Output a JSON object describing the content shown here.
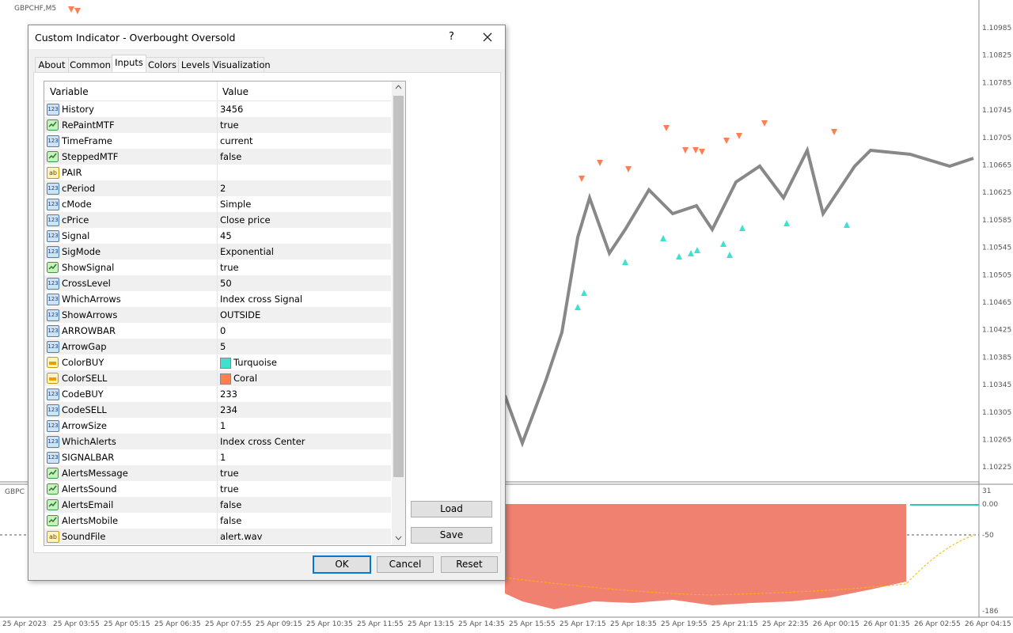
{
  "chart_window": {
    "symbol": "GBPCHF,M5",
    "indicator_label": "GBPC",
    "price_labels": [
      "1.10985",
      "1.10825",
      "1.10785",
      "1.10745",
      "1.10705",
      "1.10665",
      "1.10625",
      "1.10585",
      "1.10545",
      "1.10505",
      "1.10465",
      "1.10425",
      "1.10385",
      "1.10345",
      "1.10305",
      "1.10265",
      "1.10225"
    ],
    "indicator_labels": [
      "31",
      "0.00",
      "-50",
      "-186"
    ],
    "time_labels": [
      "25 Apr 2023",
      "25 Apr 03:55",
      "25 Apr 05:15",
      "25 Apr 06:35",
      "25 Apr 07:55",
      "25 Apr 09:15",
      "25 Apr 10:35",
      "25 Apr 11:55",
      "25 Apr 13:15",
      "25 Apr 14:35",
      "25 Apr 15:55",
      "25 Apr 17:15",
      "25 Apr 18:35",
      "25 Apr 19:55",
      "25 Apr 21:15",
      "25 Apr 22:35",
      "26 Apr 00:15",
      "26 Apr 01:35",
      "26 Apr 02:55",
      "26 Apr 04:15"
    ]
  },
  "dialog": {
    "title": "Custom Indicator - Overbought Oversold",
    "help": "?",
    "tabs": [
      "About",
      "Common",
      "Inputs",
      "Colors",
      "Levels",
      "Visualization"
    ],
    "active_tab": 2,
    "columns": [
      "Variable",
      "Value"
    ],
    "rows": [
      {
        "icon": "123",
        "name": "History",
        "value": "3456"
      },
      {
        "icon": "bool",
        "name": "RePaintMTF",
        "value": "true"
      },
      {
        "icon": "123",
        "name": "TimeFrame",
        "value": "current"
      },
      {
        "icon": "bool",
        "name": "SteppedMTF",
        "value": "false"
      },
      {
        "icon": "ab",
        "name": "PAIR"
      },
      {
        "icon": "123",
        "name": "cPeriod",
        "value": "2"
      },
      {
        "icon": "123",
        "name": "cMode",
        "value": "Simple"
      },
      {
        "icon": "123",
        "name": "cPrice",
        "value": "Close price"
      },
      {
        "icon": "123",
        "name": "Signal",
        "value": "45"
      },
      {
        "icon": "123",
        "name": "SigMode",
        "value": "Exponential"
      },
      {
        "icon": "bool",
        "name": "ShowSignal",
        "value": "true"
      },
      {
        "icon": "123",
        "name": "CrossLevel",
        "value": "50"
      },
      {
        "icon": "123",
        "name": "WhichArrows",
        "value": "Index cross Signal"
      },
      {
        "icon": "123",
        "name": "ShowArrows",
        "value": "OUTSIDE"
      },
      {
        "icon": "123",
        "name": "ARROWBAR",
        "value": "0"
      },
      {
        "icon": "123",
        "name": "ArrowGap",
        "value": "5"
      },
      {
        "icon": "color",
        "name": "ColorBUY",
        "value": "Turquoise",
        "swatch": "#40e0d0"
      },
      {
        "icon": "color",
        "name": "ColorSELL",
        "value": "Coral",
        "swatch": "#ff7f50"
      },
      {
        "icon": "123",
        "name": "CodeBUY",
        "value": "233"
      },
      {
        "icon": "123",
        "name": "CodeSELL",
        "value": "234"
      },
      {
        "icon": "123",
        "name": "ArrowSize",
        "value": "1"
      },
      {
        "icon": "123",
        "name": "WhichAlerts",
        "value": "Index cross Center"
      },
      {
        "icon": "123",
        "name": "SIGNALBAR",
        "value": "1"
      },
      {
        "icon": "bool",
        "name": "AlertsMessage",
        "value": "true"
      },
      {
        "icon": "bool",
        "name": "AlertsSound",
        "value": "true"
      },
      {
        "icon": "bool",
        "name": "AlertsEmail",
        "value": "false"
      },
      {
        "icon": "bool",
        "name": "AlertsMobile",
        "value": "false"
      },
      {
        "icon": "ab",
        "name": "SoundFile",
        "value": "alert.wav"
      }
    ],
    "side_buttons": [
      "Load",
      "Save"
    ],
    "buttons": [
      "OK",
      "Cancel",
      "Reset"
    ]
  }
}
